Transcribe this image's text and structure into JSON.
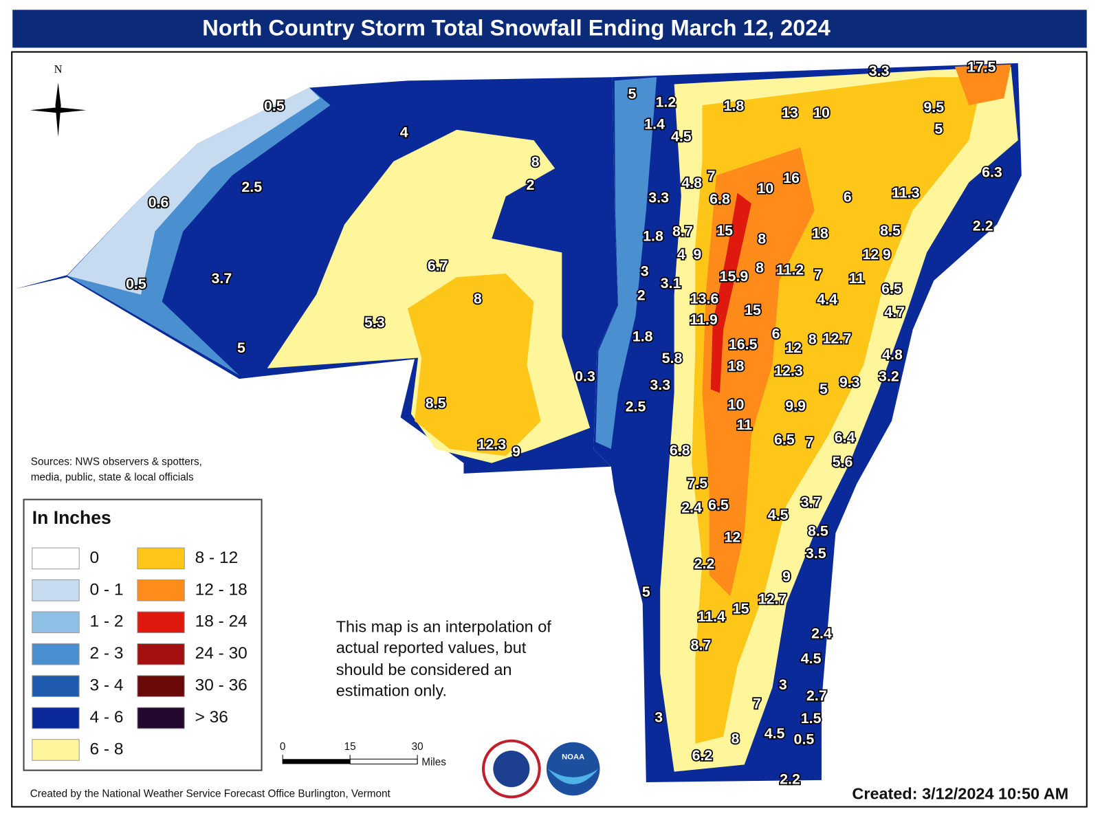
{
  "title": "North Country Storm Total Snowfall Ending March 12, 2024",
  "compass": "N",
  "sources": [
    "Sources: NWS observers & spotters,",
    "media, public, state & local officials"
  ],
  "legend": {
    "title": "In Inches",
    "items": [
      {
        "label": "0",
        "color": "#ffffff"
      },
      {
        "label": "0 - 1",
        "color": "#c6dbef"
      },
      {
        "label": "1 - 2",
        "color": "#8ec0e6"
      },
      {
        "label": "2 - 3",
        "color": "#4a8fd0"
      },
      {
        "label": "3 - 4",
        "color": "#1f5cb0"
      },
      {
        "label": "4 - 6",
        "color": "#0b2a9a"
      },
      {
        "label": "6 - 8",
        "color": "#fff59a"
      },
      {
        "label": "8 - 12",
        "color": "#ffc61a"
      },
      {
        "label": "12 - 18",
        "color": "#ff8c1a"
      },
      {
        "label": "18 - 24",
        "color": "#e0190f"
      },
      {
        "label": "24 - 30",
        "color": "#a50f0f"
      },
      {
        "label": "30 - 36",
        "color": "#6b0808"
      },
      {
        "label": "> 36",
        "color": "#25082e"
      }
    ]
  },
  "note": [
    "This map is an interpolation of",
    "actual reported values, but",
    "should be considered an",
    "estimation only."
  ],
  "scale": {
    "ticks": [
      0,
      15,
      30
    ],
    "unit": "Miles"
  },
  "logo": "NOAA",
  "credit": "Created by the National Weather Service Forecast Office Burlington, Vermont",
  "created": "Created: 3/12/2024 10:50 AM",
  "snowfall_labels": [
    0.5,
    4,
    2.5,
    0.6,
    8,
    2,
    0.5,
    3.7,
    6.7,
    8,
    5.3,
    5,
    8.5,
    12.3,
    9,
    0.3,
    5,
    1.2,
    1.4,
    4.5,
    1.8,
    13,
    10,
    3.3,
    17.5,
    9.5,
    5,
    6.3,
    4.8,
    7,
    3.3,
    6.8,
    10,
    16,
    6,
    11.3,
    2.2,
    1.8,
    8.7,
    15,
    8,
    18,
    8.5,
    4,
    9,
    12,
    9,
    3,
    15.9,
    8,
    11.2,
    7,
    11,
    6.5,
    3.1,
    2,
    13.6,
    4.4,
    15,
    4.7,
    11.9,
    1.8,
    6,
    16.5,
    12,
    8,
    12.7,
    4.8,
    5.8,
    18,
    12.3,
    3.2,
    3.3,
    5,
    9.3,
    2.5,
    10,
    9.9,
    11,
    6.5,
    7,
    6.4,
    6.8,
    5.6,
    7.5,
    2.4,
    6.5,
    3.7,
    4.5,
    8.5,
    12,
    3.5,
    2.2,
    9,
    5,
    12.7,
    15,
    11.4,
    2.4,
    8.7,
    4.5,
    3,
    2.7,
    7,
    1.5,
    3,
    8,
    4.5,
    0.5,
    6.2,
    2.2
  ]
}
